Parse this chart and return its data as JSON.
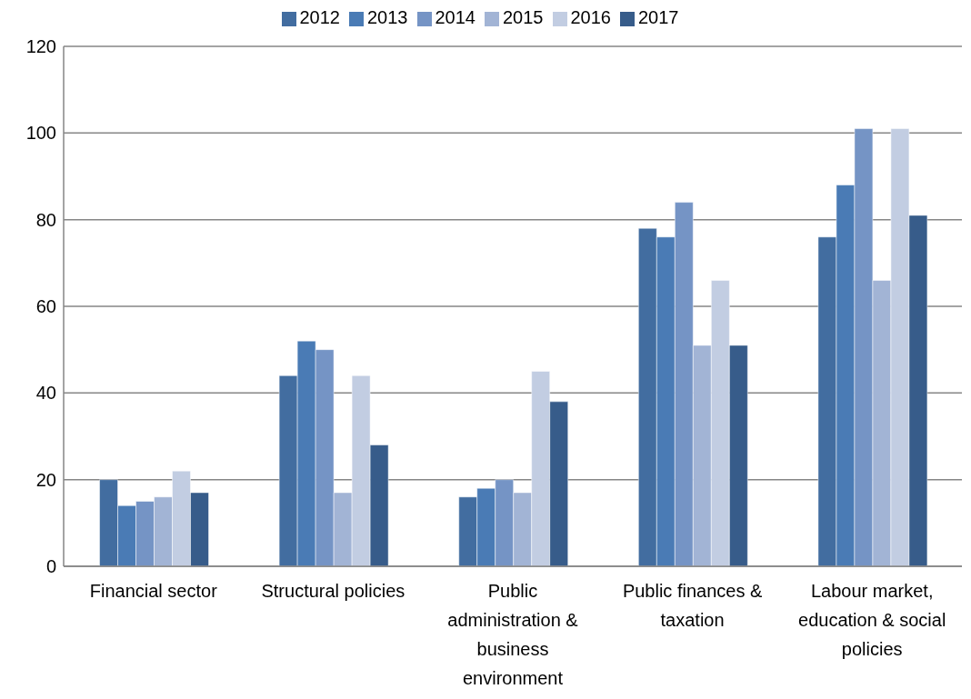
{
  "chart_data": {
    "type": "bar",
    "categories": [
      "Financial sector",
      "Structural policies",
      "Public administration & business environment",
      "Public finances & taxation",
      "Labour market, education & social policies"
    ],
    "series": [
      {
        "name": "2012",
        "color": "#426da0",
        "values": [
          20,
          44,
          16,
          78,
          76
        ]
      },
      {
        "name": "2013",
        "color": "#4a7bb5",
        "values": [
          14,
          52,
          18,
          76,
          88
        ]
      },
      {
        "name": "2014",
        "color": "#7594c5",
        "values": [
          15,
          50,
          20,
          84,
          101
        ]
      },
      {
        "name": "2015",
        "color": "#a2b4d5",
        "values": [
          16,
          17,
          17,
          51,
          66
        ]
      },
      {
        "name": "2016",
        "color": "#c2cde2",
        "values": [
          22,
          44,
          45,
          66,
          101
        ]
      },
      {
        "name": "2017",
        "color": "#375c8a",
        "values": [
          17,
          28,
          38,
          51,
          81
        ]
      }
    ],
    "ylim": [
      0,
      120
    ],
    "yticks": [
      0,
      20,
      40,
      60,
      80,
      100,
      120
    ],
    "grid": "y",
    "legend": "top"
  }
}
